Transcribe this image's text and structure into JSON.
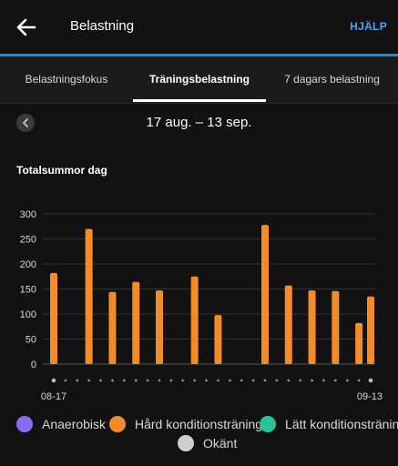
{
  "header": {
    "title": "Belastning",
    "help_label": "HJÄLP"
  },
  "tabs": [
    {
      "label": "Belastningsfokus"
    },
    {
      "label": "Träningsbelastning"
    },
    {
      "label": "7 dagars belastning"
    }
  ],
  "active_tab": 1,
  "date_range": "17 aug. – 13 sep.",
  "section_title": "Totalsummor dag",
  "legend": [
    {
      "label": "Anaerobisk",
      "color": "#8b6cf0"
    },
    {
      "label": "Hård konditionsträning",
      "color": "#f28c28"
    },
    {
      "label": "Lätt konditionsträning",
      "color": "#26c49a"
    },
    {
      "label": "Okänt",
      "color": "#cfcfcf"
    }
  ],
  "chart_data": {
    "type": "bar",
    "title": "Totalsummor dag",
    "ylim": [
      0,
      300
    ],
    "yticks": [
      0,
      50,
      100,
      150,
      200,
      250,
      300
    ],
    "grid": true,
    "series": [
      {
        "name": "Hård konditionsträning",
        "color": "#f28c28",
        "values": [
          182,
          0,
          0,
          270,
          0,
          144,
          0,
          164,
          0,
          147,
          0,
          0,
          175,
          0,
          98,
          0,
          0,
          0,
          278,
          0,
          157,
          0,
          147,
          0,
          146,
          0,
          82,
          135
        ]
      }
    ],
    "x_tick_labels": [
      {
        "index": 0,
        "label": "08-17"
      },
      {
        "index": 27,
        "label": "09-13"
      }
    ],
    "day_count": 28
  }
}
